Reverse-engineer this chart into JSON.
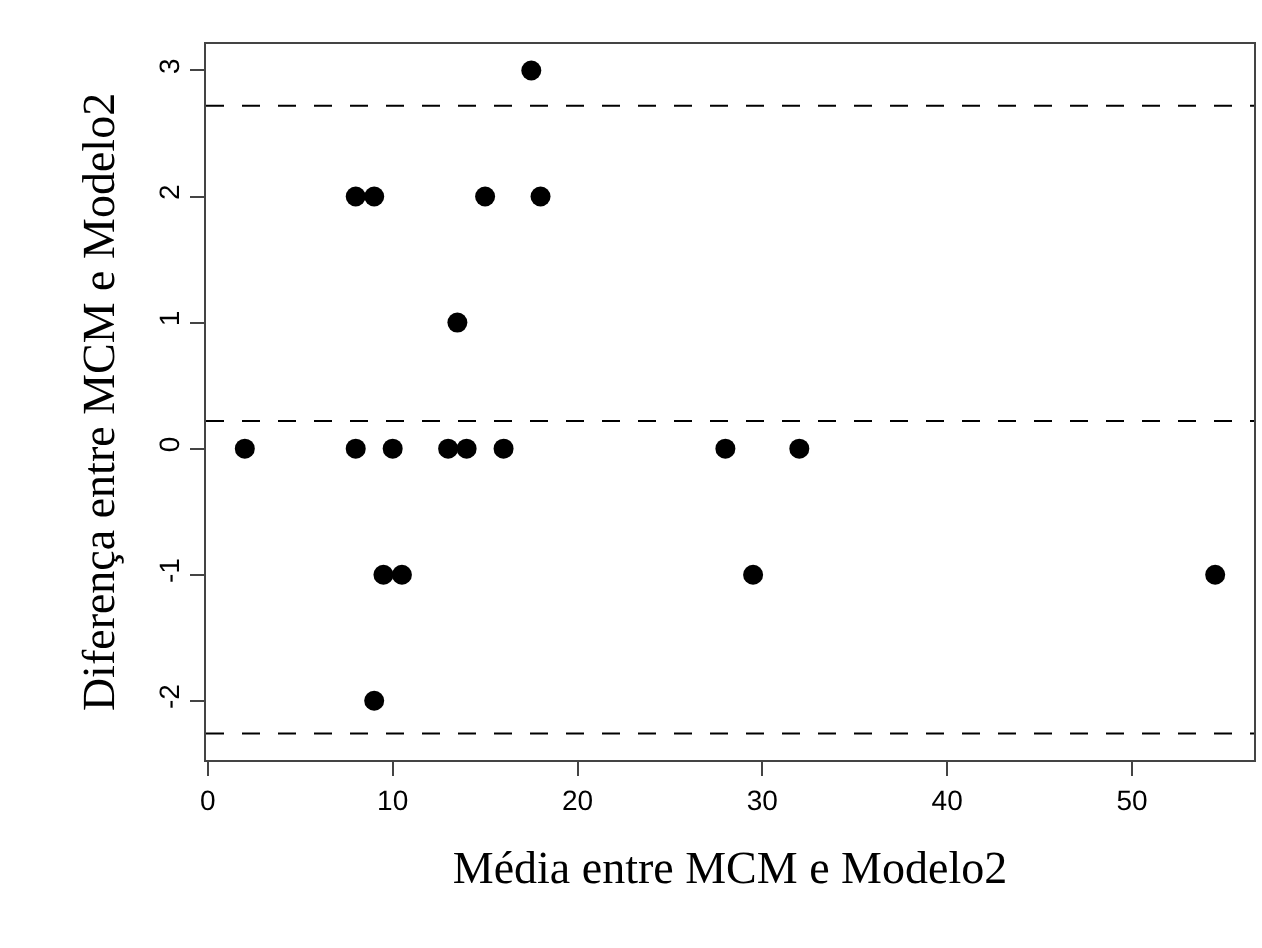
{
  "chart_data": {
    "type": "scatter",
    "xlabel": "Média entre MCM e Modelo2",
    "ylabel": "Diferença entre MCM e Modelo2",
    "x": [
      17.5,
      8,
      9,
      15,
      18,
      13.5,
      2,
      8,
      10,
      13,
      14,
      16,
      28,
      32,
      9.5,
      10.5,
      29.5,
      54.5,
      9
    ],
    "values": [
      3,
      2,
      2,
      2,
      2,
      1,
      0,
      0,
      0,
      0,
      0,
      0,
      0,
      0,
      -1,
      -1,
      -1,
      -1,
      -2
    ],
    "color": "#000000",
    "marker": "circle",
    "xlim": [
      -0.1,
      56.6
    ],
    "ylim": [
      -2.47,
      3.21
    ],
    "xticks": [
      0,
      10,
      20,
      30,
      40,
      50
    ],
    "yticks": [
      -2,
      -1,
      0,
      1,
      2,
      3
    ],
    "ref_lines": [
      {
        "axis": "y",
        "value": 2.72,
        "color": "#000000",
        "line_style": "dashed"
      },
      {
        "axis": "y",
        "value": 0.22,
        "color": "#000000",
        "line_style": "dashed"
      },
      {
        "axis": "y",
        "value": -2.26,
        "color": "#000000",
        "line_style": "dashed"
      }
    ]
  }
}
